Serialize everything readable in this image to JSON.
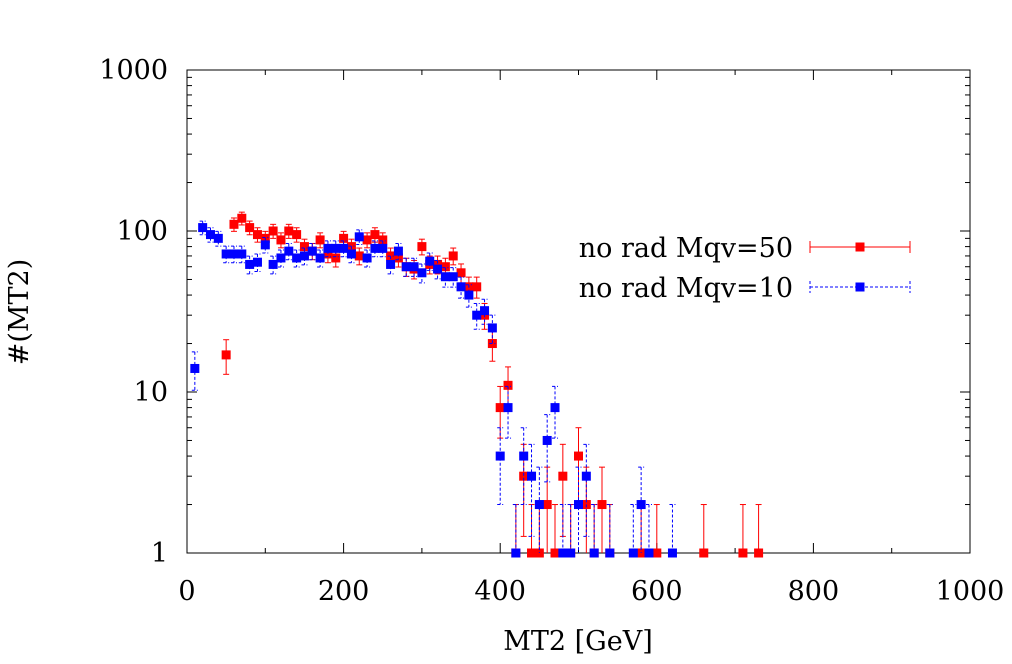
{
  "chart_data": {
    "type": "scatter",
    "title": "",
    "xlabel": "MT2 [GeV]",
    "ylabel": "#(MT2)",
    "xlim": [
      0,
      1000
    ],
    "ylim": [
      1,
      1000
    ],
    "yscale": "log",
    "grid": false,
    "legend_position": "right",
    "x_ticks": [
      0,
      200,
      400,
      600,
      800,
      1000
    ],
    "x_tick_labels": [
      "0",
      "200",
      "400",
      "600",
      "800",
      "1000"
    ],
    "y_ticks": [
      1,
      10,
      100,
      1000
    ],
    "y_tick_labels": [
      "1",
      "10",
      "100",
      "1000"
    ],
    "series": [
      {
        "name": "no rad Mqv=50",
        "color": "#ff0000",
        "error_style": "solid",
        "x": [
          50,
          60,
          70,
          80,
          90,
          100,
          110,
          120,
          130,
          140,
          150,
          160,
          170,
          180,
          190,
          200,
          210,
          220,
          230,
          240,
          250,
          260,
          270,
          280,
          290,
          300,
          310,
          320,
          330,
          340,
          350,
          360,
          370,
          380,
          390,
          400,
          410,
          420,
          430,
          440,
          450,
          460,
          470,
          480,
          490,
          500,
          510,
          520,
          530,
          540,
          580,
          600,
          660,
          710,
          730
        ],
        "y": [
          17,
          110,
          120,
          105,
          95,
          90,
          100,
          88,
          100,
          95,
          80,
          75,
          88,
          72,
          68,
          90,
          80,
          70,
          88,
          95,
          88,
          70,
          68,
          60,
          58,
          80,
          62,
          62,
          60,
          70,
          55,
          45,
          45,
          30,
          20,
          8,
          11,
          1,
          3,
          1,
          1,
          2,
          1,
          3,
          1,
          4,
          2,
          1,
          2,
          1,
          1,
          1,
          1,
          1,
          1
        ]
      },
      {
        "name": "no rad Mqv=10",
        "color": "#0000ff",
        "error_style": "dashed",
        "x": [
          10,
          20,
          30,
          40,
          50,
          60,
          70,
          80,
          90,
          100,
          110,
          120,
          130,
          140,
          150,
          160,
          170,
          180,
          190,
          200,
          210,
          220,
          230,
          240,
          250,
          260,
          270,
          280,
          290,
          300,
          310,
          320,
          330,
          340,
          350,
          360,
          370,
          380,
          390,
          400,
          410,
          420,
          430,
          440,
          450,
          460,
          470,
          480,
          490,
          500,
          510,
          520,
          540,
          570,
          580,
          590,
          620
        ],
        "y": [
          14,
          105,
          95,
          90,
          72,
          72,
          72,
          62,
          64,
          82,
          62,
          68,
          75,
          68,
          70,
          75,
          68,
          78,
          78,
          78,
          72,
          92,
          68,
          78,
          78,
          62,
          75,
          60,
          60,
          55,
          65,
          58,
          52,
          52,
          45,
          40,
          30,
          32,
          25,
          4,
          8,
          1,
          4,
          3,
          2,
          5,
          8,
          1,
          1,
          2,
          3,
          1,
          1,
          1,
          2,
          1,
          1
        ]
      }
    ]
  }
}
